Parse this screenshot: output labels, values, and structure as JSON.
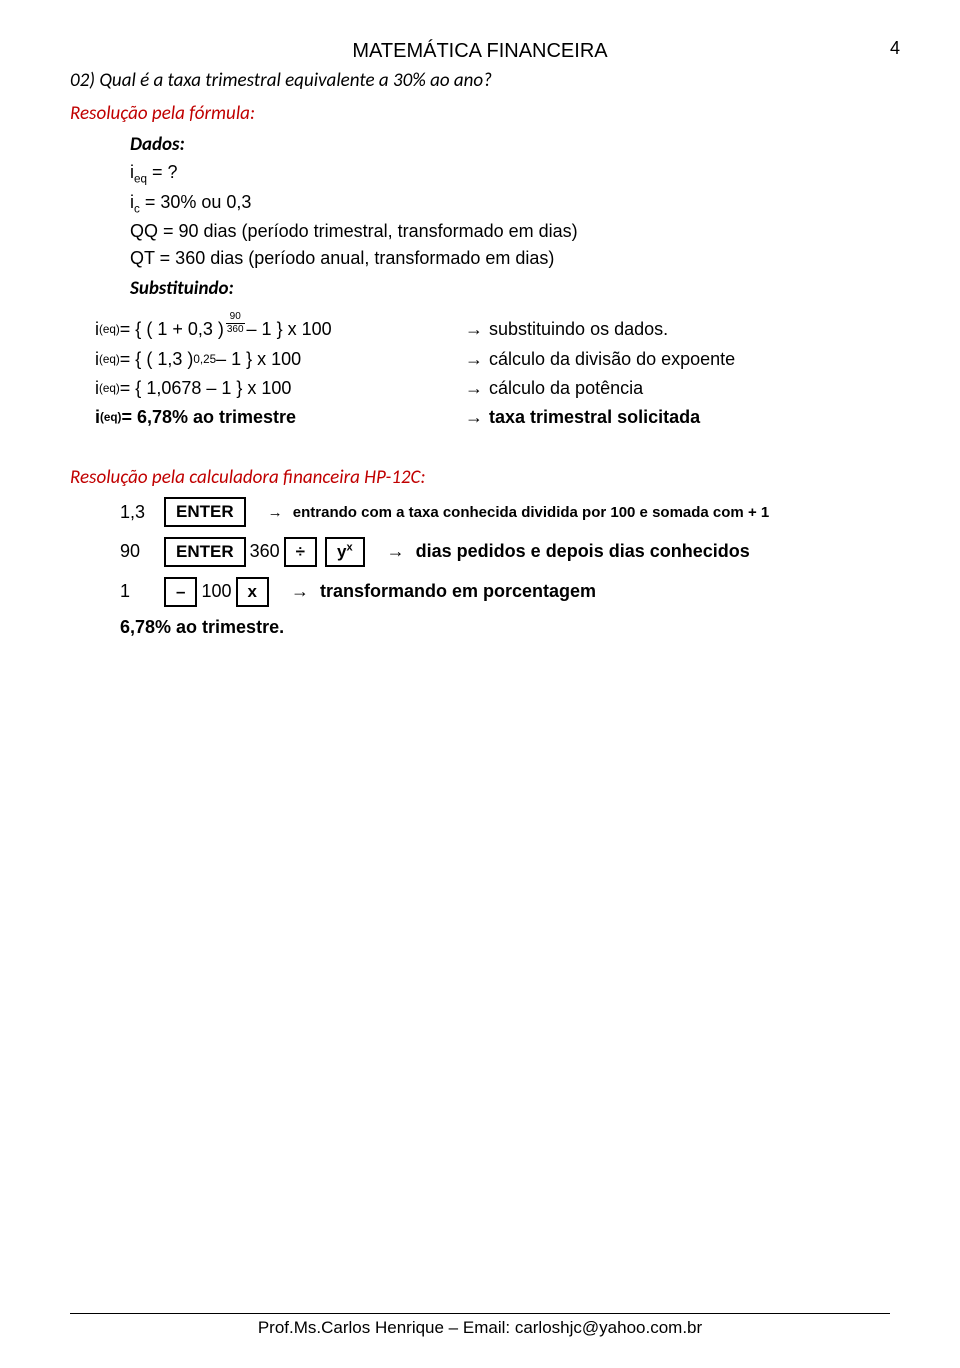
{
  "header": {
    "title": "MATEMÁTICA FINANCEIRA",
    "page_number": "4"
  },
  "question": "02) Qual é a taxa trimestral equivalente a 30% ao ano?",
  "section_formula": "Resolução pela fórmula:",
  "dados_label": "Dados:",
  "data_lines": {
    "ieq": "i",
    "ieq_sub": "eq",
    "ieq_rest": " = ?",
    "ic": "i",
    "ic_sub": "c",
    "ic_rest": " = 30% ou 0,3",
    "qq": "QQ = 90 dias (período trimestral, transformado em dias)",
    "qt": "QT = 360 dias (período anual, transformado em dias)"
  },
  "subst_label": "Substituindo:",
  "calc": [
    {
      "lhs_pre": "i",
      "lhs_sub": "(eq)",
      "lhs_mid": " = { ( 1 + 0,3 ) ",
      "frac_top": "90",
      "frac_bot": "360",
      "lhs_post": " – 1 } x 100",
      "rhs": "substituindo os dados."
    },
    {
      "lhs_pre": "i",
      "lhs_sub": "(eq)",
      "lhs_mid": " = { ( 1,3 ) ",
      "sup": "0,25",
      "lhs_post": " – 1 } x 100",
      "rhs": "cálculo da divisão do expoente"
    },
    {
      "lhs_pre": "i",
      "lhs_sub": "(eq)",
      "lhs_mid": " = { 1,0678 – 1 } x 100",
      "rhs": "cálculo da potência"
    },
    {
      "lhs_pre": "i",
      "lhs_sub": "(eq)",
      "lhs_mid": " = 6,78% ao trimestre",
      "rhs": "taxa trimestral solicitada",
      "bold": true
    }
  ],
  "section_hp": "Resolução pela calculadora financeira HP-12C:",
  "hp_rows": [
    {
      "lead": "1,3",
      "keys": [
        "ENTER"
      ],
      "desc": "entrando com a taxa conhecida dividida por 100 e somada com + 1",
      "desc_small": true
    },
    {
      "lead": "90",
      "keys_seq": [
        {
          "type": "key",
          "label": "ENTER"
        },
        {
          "type": "text",
          "label": " 360 "
        },
        {
          "type": "key",
          "label": "÷"
        },
        {
          "type": "key",
          "label": "y",
          "sup": "x"
        }
      ],
      "desc": "dias pedidos e depois dias conhecidos"
    },
    {
      "lead": "1",
      "keys_seq": [
        {
          "type": "key",
          "label": "–"
        },
        {
          "type": "text",
          "label": " 100 "
        },
        {
          "type": "key",
          "label": "x"
        }
      ],
      "desc": "transformando em porcentagem"
    }
  ],
  "result": "6,78% ao trimestre.",
  "arrow": "→",
  "footer": "Prof.Ms.Carlos Henrique – Email: carloshjc@yahoo.com.br"
}
